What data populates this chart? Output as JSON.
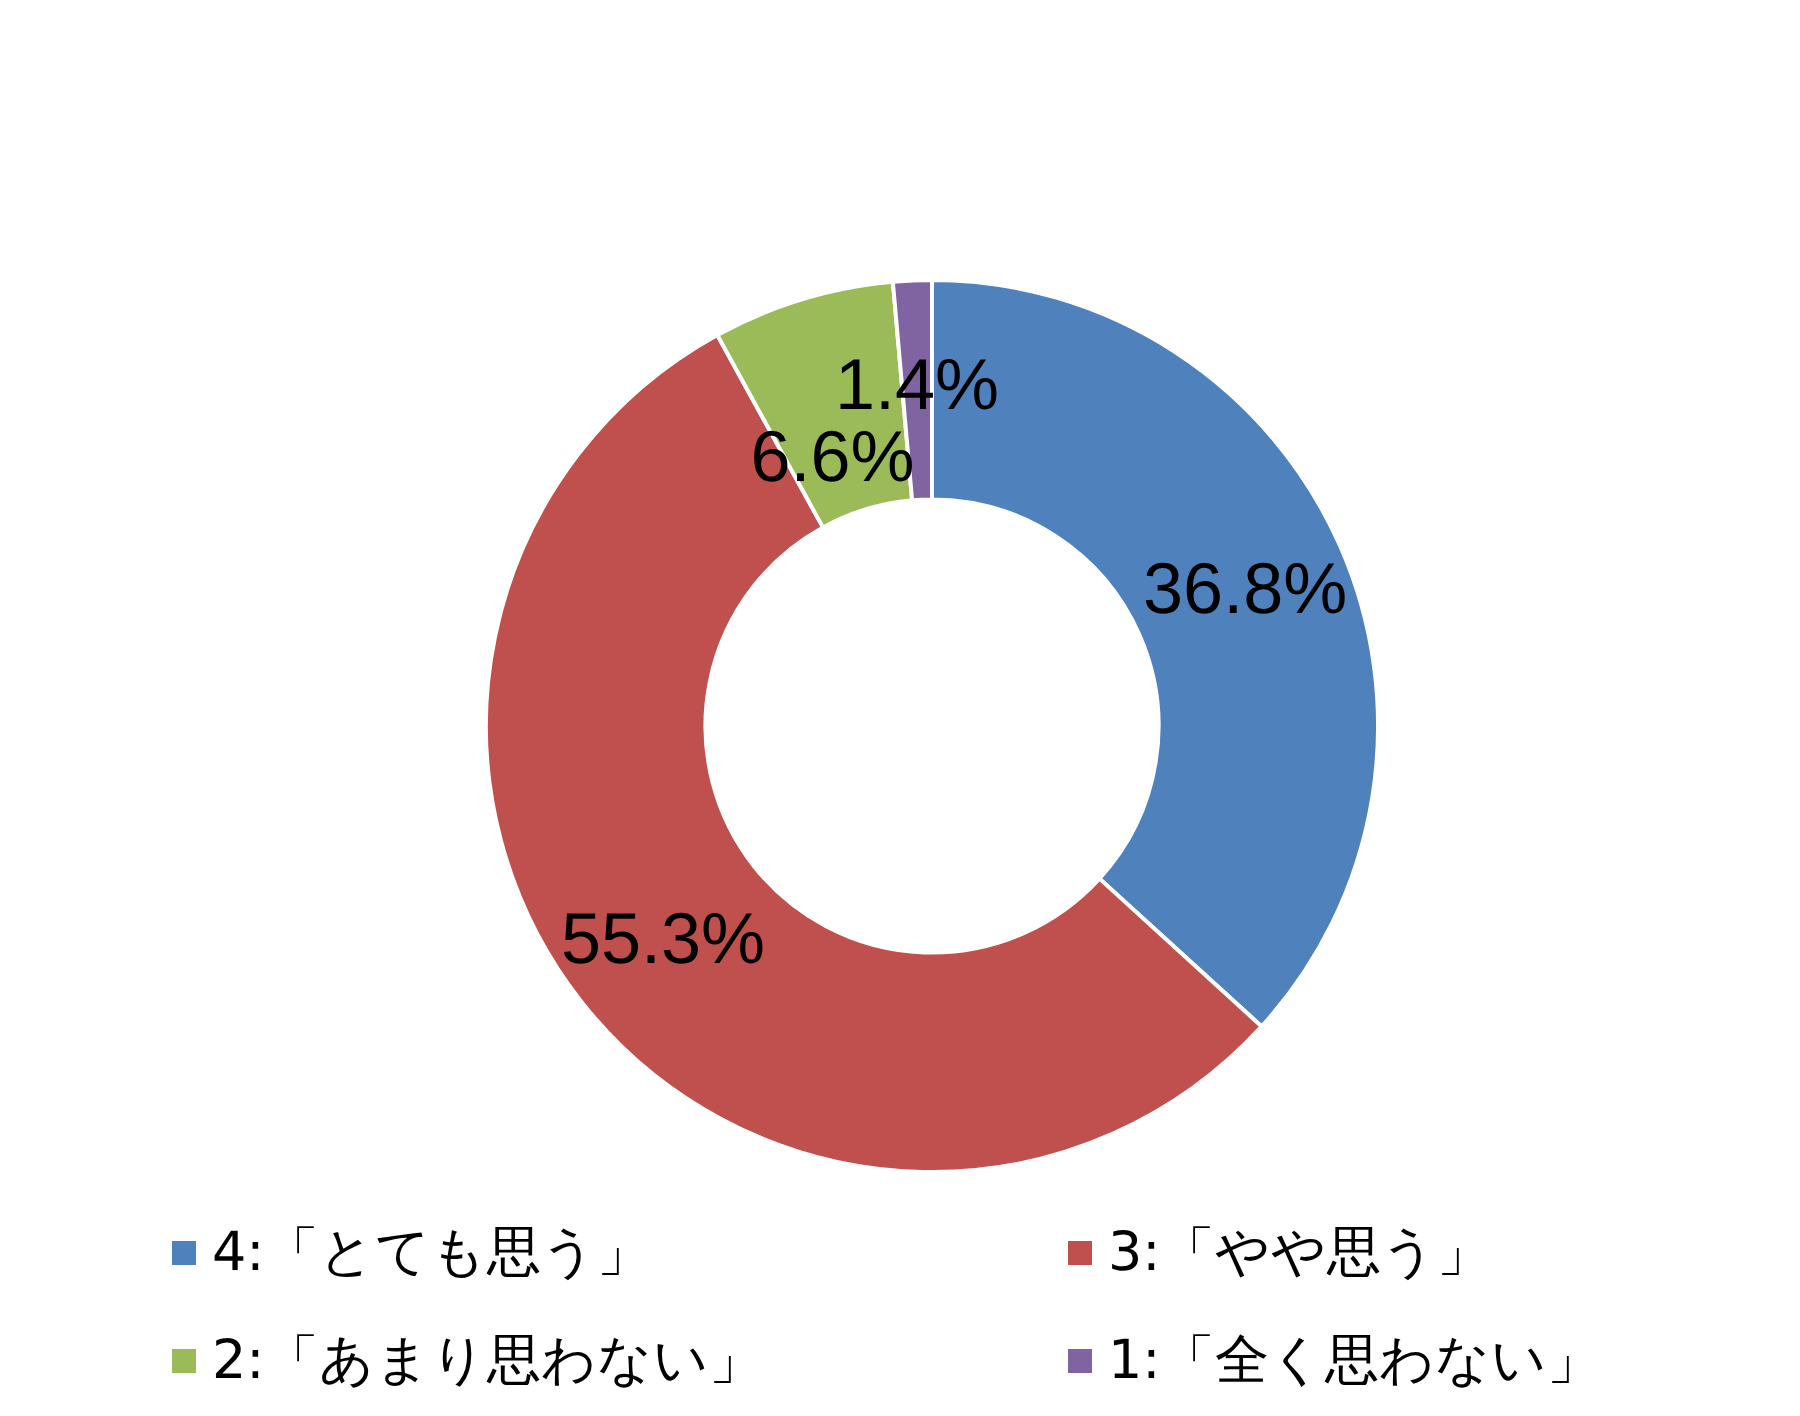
{
  "chart_data": {
    "type": "donut",
    "categories": [
      "4:「とても思う」",
      "3:「やや思う」",
      "2:「あまり思わない」",
      "1:「全く思わない」"
    ],
    "values": [
      36.8,
      55.3,
      6.6,
      1.4
    ],
    "value_labels": [
      "36.8%",
      "55.3%",
      "6.6%",
      "1.4%"
    ],
    "colors": [
      "#4f81bd",
      "#c0504d",
      "#9bbb59",
      "#8064a2"
    ],
    "legend": "bottom"
  }
}
